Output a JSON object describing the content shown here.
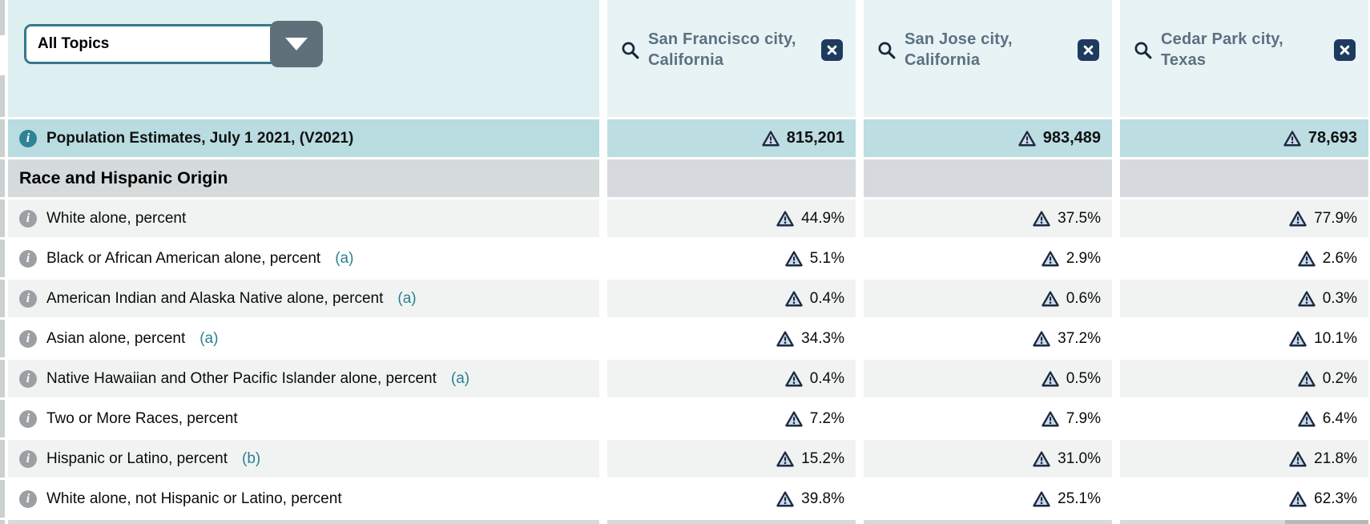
{
  "topics_dropdown": {
    "value": "All Topics"
  },
  "columns": [
    {
      "name": "San Francisco city, California"
    },
    {
      "name": "San Jose city, California"
    },
    {
      "name": "Cedar Park city, Texas"
    }
  ],
  "population_row": {
    "label": "Population Estimates, July 1 2021, (V2021)",
    "values": [
      "815,201",
      "983,489",
      "78,693"
    ]
  },
  "section": {
    "title": "Race and Hispanic Origin"
  },
  "rows": [
    {
      "label": "White alone, percent",
      "footnote": "",
      "values": [
        "44.9%",
        "37.5%",
        "77.9%"
      ]
    },
    {
      "label": "Black or African American alone, percent",
      "footnote": "(a)",
      "values": [
        "5.1%",
        "2.9%",
        "2.6%"
      ]
    },
    {
      "label": "American Indian and Alaska Native alone, percent",
      "footnote": "(a)",
      "values": [
        "0.4%",
        "0.6%",
        "0.3%"
      ]
    },
    {
      "label": "Asian alone, percent",
      "footnote": "(a)",
      "values": [
        "34.3%",
        "37.2%",
        "10.1%"
      ]
    },
    {
      "label": "Native Hawaiian and Other Pacific Islander alone, percent",
      "footnote": "(a)",
      "values": [
        "0.4%",
        "0.5%",
        "0.2%"
      ]
    },
    {
      "label": "Two or More Races, percent",
      "footnote": "",
      "values": [
        "7.2%",
        "7.9%",
        "6.4%"
      ]
    },
    {
      "label": "Hispanic or Latino, percent",
      "footnote": "(b)",
      "values": [
        "15.2%",
        "31.0%",
        "21.8%"
      ]
    },
    {
      "label": "White alone, not Hispanic or Latino, percent",
      "footnote": "",
      "values": [
        "39.8%",
        "25.1%",
        "62.3%"
      ]
    }
  ],
  "icons": {
    "search": "search-icon",
    "remove_column": "close-icon",
    "info": "info-icon",
    "value_flag": "warning-triangle-icon",
    "dropdown": "chevron-down-icon"
  },
  "colors": {
    "header_teal": "#ddeff0",
    "column_header_teal": "#e7f3f4",
    "highlight_row_teal": "#b8dce0",
    "section_gray": "#d5dada",
    "alt_row_gray": "#f1f3f3",
    "accent_navy": "#1e3a5f",
    "dropdown_border_teal": "#35798a",
    "dropdown_button_slate": "#5f707b",
    "footnote_teal": "#2a8093",
    "header_text": "#5d7081"
  }
}
